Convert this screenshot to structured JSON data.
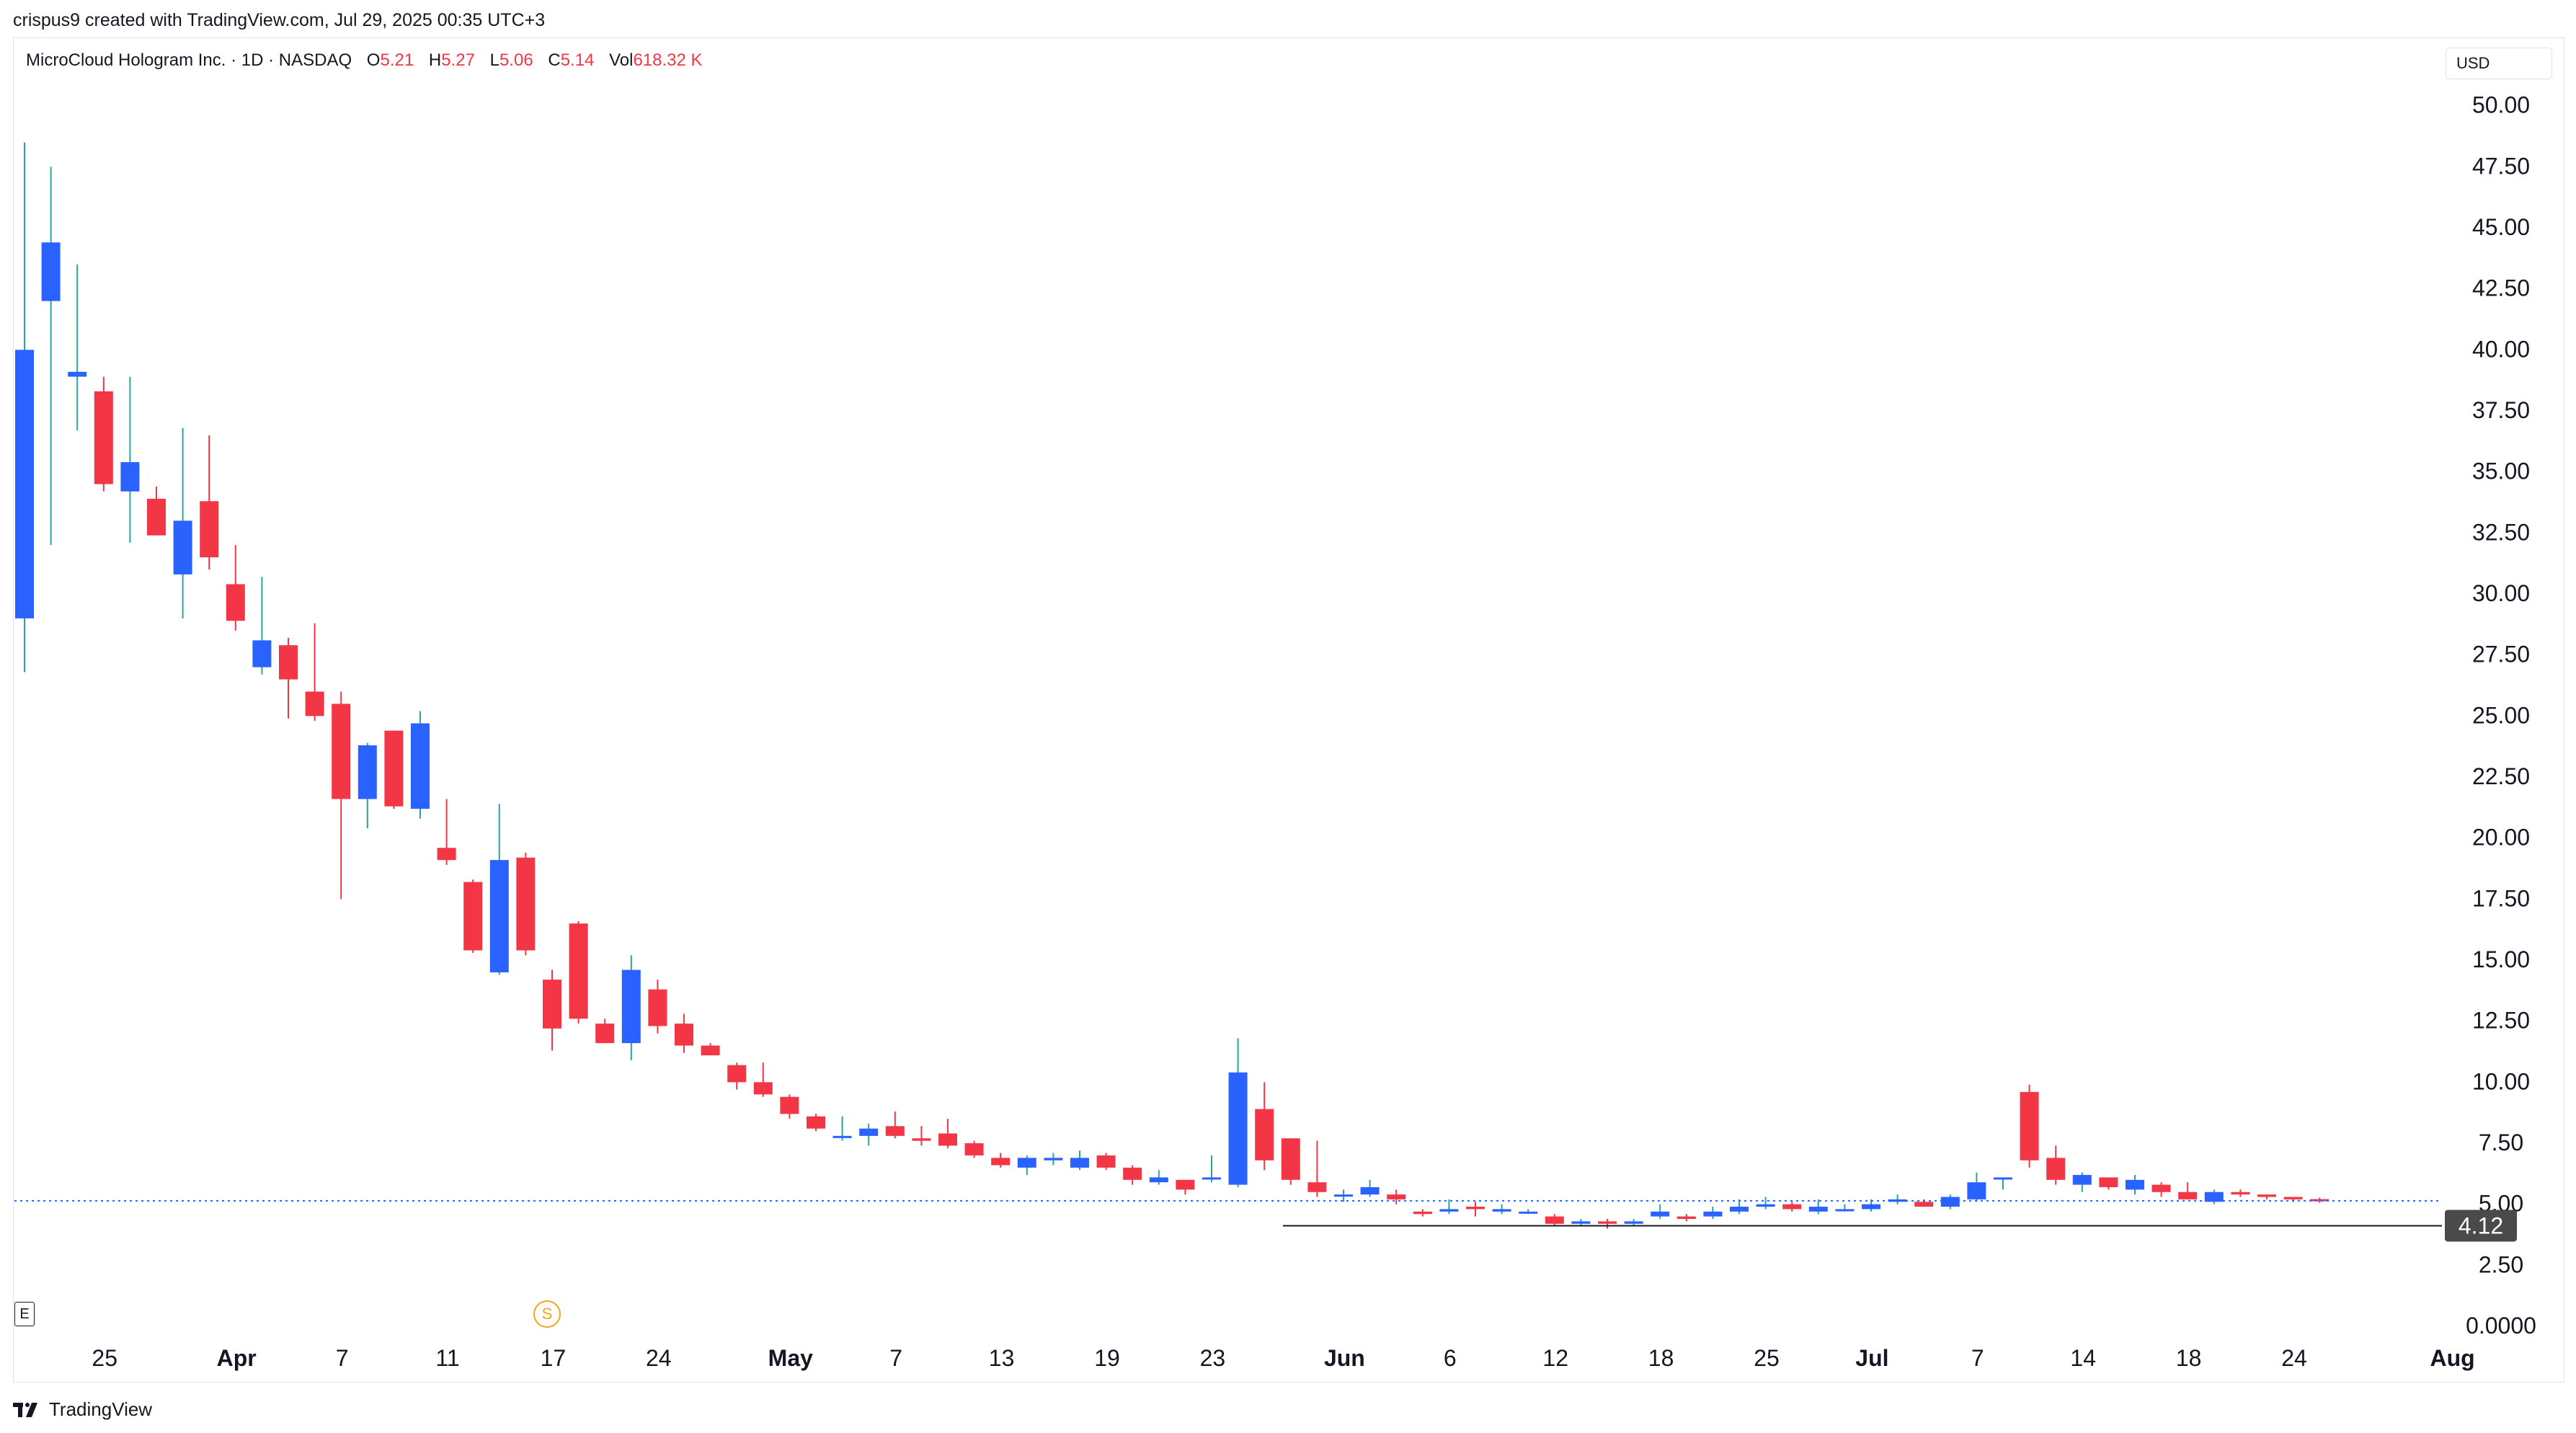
{
  "header": {
    "credit": "crispus9 created with TradingView.com, Jul 29, 2025 00:35 UTC+3"
  },
  "legend": {
    "symbol": "MicroCloud Hologram Inc. · 1D · NASDAQ",
    "o_label": "O",
    "o_value": "5.21",
    "h_label": "H",
    "h_value": "5.27",
    "l_label": "L",
    "l_value": "5.06",
    "c_label": "C",
    "c_value": "5.14",
    "vol_label": "Vol",
    "vol_value": "618.32 K"
  },
  "currency": "USD",
  "markers": {
    "earnings": "E",
    "split": "S"
  },
  "footer": {
    "brand": "TradingView"
  },
  "colors": {
    "up": "#2962ff",
    "down": "#f23645",
    "wick_up": "#26a69a",
    "current_line": "#2962ff",
    "support_label_bg": "#4a4a4a"
  },
  "chart_data": {
    "type": "candlestick",
    "ylim": [
      0,
      52.5
    ],
    "y_ticks": [
      "50.00",
      "47.50",
      "45.00",
      "42.50",
      "40.00",
      "37.50",
      "35.00",
      "32.50",
      "30.00",
      "27.50",
      "25.00",
      "22.50",
      "20.00",
      "17.50",
      "15.00",
      "12.50",
      "10.00",
      "7.50",
      "5.00",
      "2.50",
      "0.0000"
    ],
    "x_ticks": [
      {
        "label": "25",
        "i": 2,
        "bold": false
      },
      {
        "label": "Apr",
        "i": 7,
        "bold": true
      },
      {
        "label": "7",
        "i": 11,
        "bold": false
      },
      {
        "label": "11",
        "i": 15,
        "bold": false
      },
      {
        "label": "17",
        "i": 19,
        "bold": false
      },
      {
        "label": "24",
        "i": 23,
        "bold": false
      },
      {
        "label": "May",
        "i": 28,
        "bold": true
      },
      {
        "label": "7",
        "i": 32,
        "bold": false
      },
      {
        "label": "13",
        "i": 36,
        "bold": false
      },
      {
        "label": "19",
        "i": 40,
        "bold": false
      },
      {
        "label": "23",
        "i": 44,
        "bold": false
      },
      {
        "label": "Jun",
        "i": 49,
        "bold": true
      },
      {
        "label": "6",
        "i": 53,
        "bold": false
      },
      {
        "label": "12",
        "i": 57,
        "bold": false
      },
      {
        "label": "18",
        "i": 61,
        "bold": false
      },
      {
        "label": "25",
        "i": 65,
        "bold": false
      },
      {
        "label": "Jul",
        "i": 69,
        "bold": true
      },
      {
        "label": "7",
        "i": 73,
        "bold": false
      },
      {
        "label": "14",
        "i": 77,
        "bold": false
      },
      {
        "label": "18",
        "i": 81,
        "bold": false
      },
      {
        "label": "24",
        "i": 85,
        "bold": false
      },
      {
        "label": "Aug",
        "i": 91,
        "bold": true
      }
    ],
    "candles": [
      {
        "o": 29,
        "h": 48.5,
        "l": 26.8,
        "c": 40
      },
      {
        "o": 42,
        "h": 47.5,
        "l": 32,
        "c": 44.4
      },
      {
        "o": 38.9,
        "h": 43.5,
        "l": 36.7,
        "c": 39.1
      },
      {
        "o": 38.3,
        "h": 38.9,
        "l": 34.2,
        "c": 34.5
      },
      {
        "o": 34.2,
        "h": 38.9,
        "l": 32.1,
        "c": 35.4
      },
      {
        "o": 33.9,
        "h": 34.4,
        "l": 32.4,
        "c": 32.4
      },
      {
        "o": 30.8,
        "h": 36.8,
        "l": 29,
        "c": 33.0
      },
      {
        "o": 33.8,
        "h": 36.5,
        "l": 31.0,
        "c": 31.5
      },
      {
        "o": 30.4,
        "h": 32,
        "l": 28.5,
        "c": 28.9
      },
      {
        "o": 27.0,
        "h": 30.7,
        "l": 26.7,
        "c": 28.1
      },
      {
        "o": 27.9,
        "h": 28.2,
        "l": 24.9,
        "c": 26.5
      },
      {
        "o": 26.0,
        "h": 28.8,
        "l": 24.8,
        "c": 25.0
      },
      {
        "o": 25.5,
        "h": 26.0,
        "l": 17.5,
        "c": 21.6
      },
      {
        "o": 21.6,
        "h": 23.9,
        "l": 20.4,
        "c": 23.8
      },
      {
        "o": 24.4,
        "h": 24.4,
        "l": 21.2,
        "c": 21.3
      },
      {
        "o": 21.2,
        "h": 25.2,
        "l": 20.8,
        "c": 24.7
      },
      {
        "o": 19.6,
        "h": 21.6,
        "l": 18.9,
        "c": 19.1
      },
      {
        "o": 18.2,
        "h": 18.3,
        "l": 15.3,
        "c": 15.4
      },
      {
        "o": 14.5,
        "h": 21.4,
        "l": 14.4,
        "c": 19.1
      },
      {
        "o": 19.2,
        "h": 19.4,
        "l": 15.2,
        "c": 15.4
      },
      {
        "o": 14.2,
        "h": 14.6,
        "l": 11.3,
        "c": 12.2
      },
      {
        "o": 16.5,
        "h": 16.6,
        "l": 12.4,
        "c": 12.6
      },
      {
        "o": 12.4,
        "h": 12.6,
        "l": 11.6,
        "c": 11.6
      },
      {
        "o": 11.6,
        "h": 15.2,
        "l": 10.9,
        "c": 14.6
      },
      {
        "o": 13.8,
        "h": 14.2,
        "l": 12.0,
        "c": 12.3
      },
      {
        "o": 12.4,
        "h": 12.8,
        "l": 11.2,
        "c": 11.5
      },
      {
        "o": 11.5,
        "h": 11.6,
        "l": 11.1,
        "c": 11.1
      },
      {
        "o": 10.7,
        "h": 10.8,
        "l": 9.7,
        "c": 10.0
      },
      {
        "o": 10.0,
        "h": 10.8,
        "l": 9.4,
        "c": 9.5
      },
      {
        "o": 9.4,
        "h": 9.5,
        "l": 8.5,
        "c": 8.7
      },
      {
        "o": 8.6,
        "h": 8.7,
        "l": 8.0,
        "c": 8.1
      },
      {
        "o": 7.8,
        "h": 8.6,
        "l": 7.6,
        "c": 7.8
      },
      {
        "o": 7.8,
        "h": 8.3,
        "l": 7.4,
        "c": 8.1
      },
      {
        "o": 8.2,
        "h": 8.8,
        "l": 7.7,
        "c": 7.8
      },
      {
        "o": 7.7,
        "h": 8.2,
        "l": 7.4,
        "c": 7.6
      },
      {
        "o": 7.9,
        "h": 8.5,
        "l": 7.3,
        "c": 7.4
      },
      {
        "o": 7.5,
        "h": 7.6,
        "l": 6.9,
        "c": 7.0
      },
      {
        "o": 6.9,
        "h": 7.1,
        "l": 6.5,
        "c": 6.6
      },
      {
        "o": 6.5,
        "h": 7.0,
        "l": 6.2,
        "c": 6.9
      },
      {
        "o": 6.8,
        "h": 7.1,
        "l": 6.6,
        "c": 6.9
      },
      {
        "o": 6.5,
        "h": 7.2,
        "l": 6.4,
        "c": 6.9
      },
      {
        "o": 7.0,
        "h": 7.1,
        "l": 6.4,
        "c": 6.5
      },
      {
        "o": 6.5,
        "h": 6.6,
        "l": 5.8,
        "c": 6.0
      },
      {
        "o": 5.9,
        "h": 6.4,
        "l": 5.8,
        "c": 6.1
      },
      {
        "o": 6.0,
        "h": 6.0,
        "l": 5.4,
        "c": 5.6
      },
      {
        "o": 6.1,
        "h": 7.0,
        "l": 5.9,
        "c": 6.1
      },
      {
        "o": 5.8,
        "h": 11.8,
        "l": 5.7,
        "c": 10.4
      },
      {
        "o": 8.9,
        "h": 10.0,
        "l": 6.4,
        "c": 6.8
      },
      {
        "o": 7.7,
        "h": 7.7,
        "l": 5.8,
        "c": 6.0
      },
      {
        "o": 5.9,
        "h": 7.6,
        "l": 5.3,
        "c": 5.5
      },
      {
        "o": 5.4,
        "h": 5.6,
        "l": 5.1,
        "c": 5.4
      },
      {
        "o": 5.4,
        "h": 6.0,
        "l": 5.3,
        "c": 5.7
      },
      {
        "o": 5.4,
        "h": 5.6,
        "l": 5.0,
        "c": 5.2
      },
      {
        "o": 4.7,
        "h": 4.8,
        "l": 4.5,
        "c": 4.6
      },
      {
        "o": 4.7,
        "h": 5.2,
        "l": 4.6,
        "c": 4.8
      },
      {
        "o": 4.9,
        "h": 5.1,
        "l": 4.5,
        "c": 4.8
      },
      {
        "o": 4.7,
        "h": 5.0,
        "l": 4.6,
        "c": 4.8
      },
      {
        "o": 4.7,
        "h": 4.8,
        "l": 4.6,
        "c": 4.7
      },
      {
        "o": 4.5,
        "h": 4.6,
        "l": 4.1,
        "c": 4.2
      },
      {
        "o": 4.2,
        "h": 4.4,
        "l": 4.1,
        "c": 4.3
      },
      {
        "o": 4.3,
        "h": 4.4,
        "l": 4.0,
        "c": 4.2
      },
      {
        "o": 4.2,
        "h": 4.4,
        "l": 4.1,
        "c": 4.3
      },
      {
        "o": 4.5,
        "h": 5.0,
        "l": 4.4,
        "c": 4.7
      },
      {
        "o": 4.5,
        "h": 4.6,
        "l": 4.3,
        "c": 4.4
      },
      {
        "o": 4.5,
        "h": 4.9,
        "l": 4.4,
        "c": 4.7
      },
      {
        "o": 4.7,
        "h": 5.2,
        "l": 4.6,
        "c": 4.9
      },
      {
        "o": 4.9,
        "h": 5.3,
        "l": 4.8,
        "c": 5.0
      },
      {
        "o": 5.0,
        "h": 5.1,
        "l": 4.7,
        "c": 4.8
      },
      {
        "o": 4.7,
        "h": 5.2,
        "l": 4.6,
        "c": 4.9
      },
      {
        "o": 4.8,
        "h": 5.0,
        "l": 4.7,
        "c": 4.8
      },
      {
        "o": 4.8,
        "h": 5.2,
        "l": 4.7,
        "c": 5.0
      },
      {
        "o": 5.1,
        "h": 5.4,
        "l": 5.0,
        "c": 5.2
      },
      {
        "o": 5.1,
        "h": 5.2,
        "l": 4.9,
        "c": 4.9
      },
      {
        "o": 4.9,
        "h": 5.4,
        "l": 4.8,
        "c": 5.3
      },
      {
        "o": 5.2,
        "h": 6.3,
        "l": 5.1,
        "c": 5.9
      },
      {
        "o": 6.1,
        "h": 6.1,
        "l": 5.6,
        "c": 6.1
      },
      {
        "o": 9.6,
        "h": 9.9,
        "l": 6.5,
        "c": 6.8
      },
      {
        "o": 6.9,
        "h": 7.4,
        "l": 5.8,
        "c": 6.0
      },
      {
        "o": 5.8,
        "h": 6.3,
        "l": 5.5,
        "c": 6.2
      },
      {
        "o": 6.1,
        "h": 6.1,
        "l": 5.6,
        "c": 5.7
      },
      {
        "o": 5.6,
        "h": 6.2,
        "l": 5.4,
        "c": 6.0
      },
      {
        "o": 5.8,
        "h": 5.9,
        "l": 5.3,
        "c": 5.5
      },
      {
        "o": 5.5,
        "h": 5.9,
        "l": 5.2,
        "c": 5.2
      },
      {
        "o": 5.1,
        "h": 5.6,
        "l": 5.0,
        "c": 5.5
      },
      {
        "o": 5.5,
        "h": 5.6,
        "l": 5.3,
        "c": 5.4
      },
      {
        "o": 5.4,
        "h": 5.4,
        "l": 5.2,
        "c": 5.3
      },
      {
        "o": 5.3,
        "h": 5.3,
        "l": 5.1,
        "c": 5.2
      },
      {
        "o": 5.21,
        "h": 5.27,
        "l": 5.06,
        "c": 5.14
      }
    ],
    "current_price": 5.14,
    "support_level": 4.12,
    "support_label": "4.12"
  }
}
